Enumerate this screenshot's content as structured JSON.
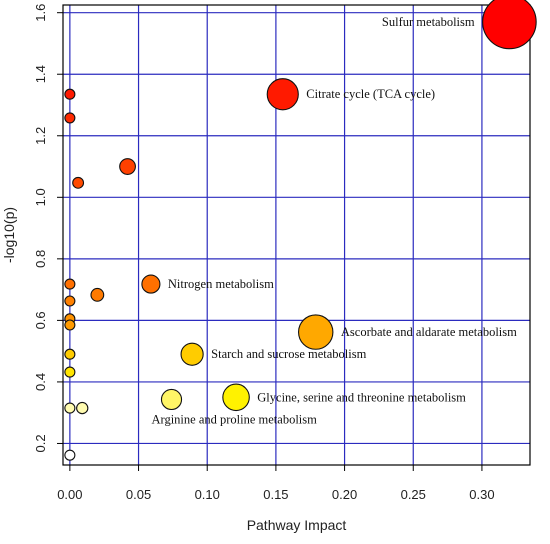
{
  "chart_data": {
    "type": "scatter",
    "title": "",
    "xlabel": "Pathway Impact",
    "ylabel": "-log10(p)",
    "xlim": [
      -0.005,
      0.335
    ],
    "ylim": [
      0.13,
      1.625
    ],
    "grid": true,
    "xticks": [
      0.0,
      0.05,
      0.1,
      0.15,
      0.2,
      0.25,
      0.3
    ],
    "xtick_labels": [
      "0.00",
      "0.05",
      "0.10",
      "0.15",
      "0.20",
      "0.25",
      "0.30"
    ],
    "yticks": [
      0.2,
      0.4,
      0.6,
      0.8,
      1.0,
      1.2,
      1.4,
      1.6
    ],
    "ytick_labels": [
      "0.2",
      "0.4",
      "0.6",
      "0.8",
      "1.0",
      "1.2",
      "1.4",
      "1.6"
    ],
    "points": [
      {
        "x": 0.32,
        "y": 1.57,
        "impact_size": 0.32,
        "color": "#ff0000",
        "label": "Sulfur metabolism",
        "label_pos": "left"
      },
      {
        "x": 0.155,
        "y": 1.335,
        "impact_size": 0.155,
        "color": "#ff1a00",
        "label": "Citrate cycle (TCA cycle)",
        "label_pos": "right"
      },
      {
        "x": 0.0,
        "y": 1.335,
        "impact_size": 0.0,
        "color": "#ff1a00",
        "label": "",
        "label_pos": ""
      },
      {
        "x": 0.0,
        "y": 1.258,
        "impact_size": 0.0,
        "color": "#ff2a00",
        "label": "",
        "label_pos": ""
      },
      {
        "x": 0.042,
        "y": 1.1,
        "impact_size": 0.042,
        "color": "#ff4000",
        "label": "",
        "label_pos": ""
      },
      {
        "x": 0.006,
        "y": 1.047,
        "impact_size": 0.006,
        "color": "#ff4a00",
        "label": "",
        "label_pos": ""
      },
      {
        "x": 0.059,
        "y": 0.718,
        "impact_size": 0.059,
        "color": "#ff7000",
        "label": "Nitrogen metabolism",
        "label_pos": "right"
      },
      {
        "x": 0.0,
        "y": 0.718,
        "impact_size": 0.0,
        "color": "#ff7000",
        "label": "",
        "label_pos": ""
      },
      {
        "x": 0.02,
        "y": 0.683,
        "impact_size": 0.02,
        "color": "#ff7a00",
        "label": "",
        "label_pos": ""
      },
      {
        "x": 0.0,
        "y": 0.663,
        "impact_size": 0.0,
        "color": "#ff8000",
        "label": "",
        "label_pos": ""
      },
      {
        "x": 0.0,
        "y": 0.605,
        "impact_size": 0.0,
        "color": "#ff9200",
        "label": "",
        "label_pos": ""
      },
      {
        "x": 0.0,
        "y": 0.585,
        "impact_size": 0.0,
        "color": "#ff9a00",
        "label": "",
        "label_pos": ""
      },
      {
        "x": 0.179,
        "y": 0.562,
        "impact_size": 0.179,
        "color": "#ffa800",
        "label": "Ascorbate and aldarate metabolism",
        "label_pos": "right"
      },
      {
        "x": 0.089,
        "y": 0.49,
        "impact_size": 0.089,
        "color": "#ffcc00",
        "label": "Starch and sucrose metabolism",
        "label_pos": "right"
      },
      {
        "x": 0.0,
        "y": 0.49,
        "impact_size": 0.0,
        "color": "#ffcc00",
        "label": "",
        "label_pos": ""
      },
      {
        "x": 0.0,
        "y": 0.432,
        "impact_size": 0.0,
        "color": "#ffe400",
        "label": "",
        "label_pos": ""
      },
      {
        "x": 0.121,
        "y": 0.35,
        "impact_size": 0.121,
        "color": "#fff200",
        "label": "Glycine, serine and threonine metabolism",
        "label_pos": "right"
      },
      {
        "x": 0.074,
        "y": 0.343,
        "impact_size": 0.074,
        "color": "#fff566",
        "label": "Arginine and proline metabolism",
        "label_pos": "below"
      },
      {
        "x": 0.0,
        "y": 0.315,
        "impact_size": 0.0,
        "color": "#fffbb0",
        "label": "",
        "label_pos": ""
      },
      {
        "x": 0.009,
        "y": 0.315,
        "impact_size": 0.009,
        "color": "#fffbb0",
        "label": "",
        "label_pos": ""
      },
      {
        "x": 0.0,
        "y": 0.162,
        "impact_size": 0.0,
        "color": "#ffffff",
        "label": "",
        "label_pos": ""
      }
    ]
  }
}
